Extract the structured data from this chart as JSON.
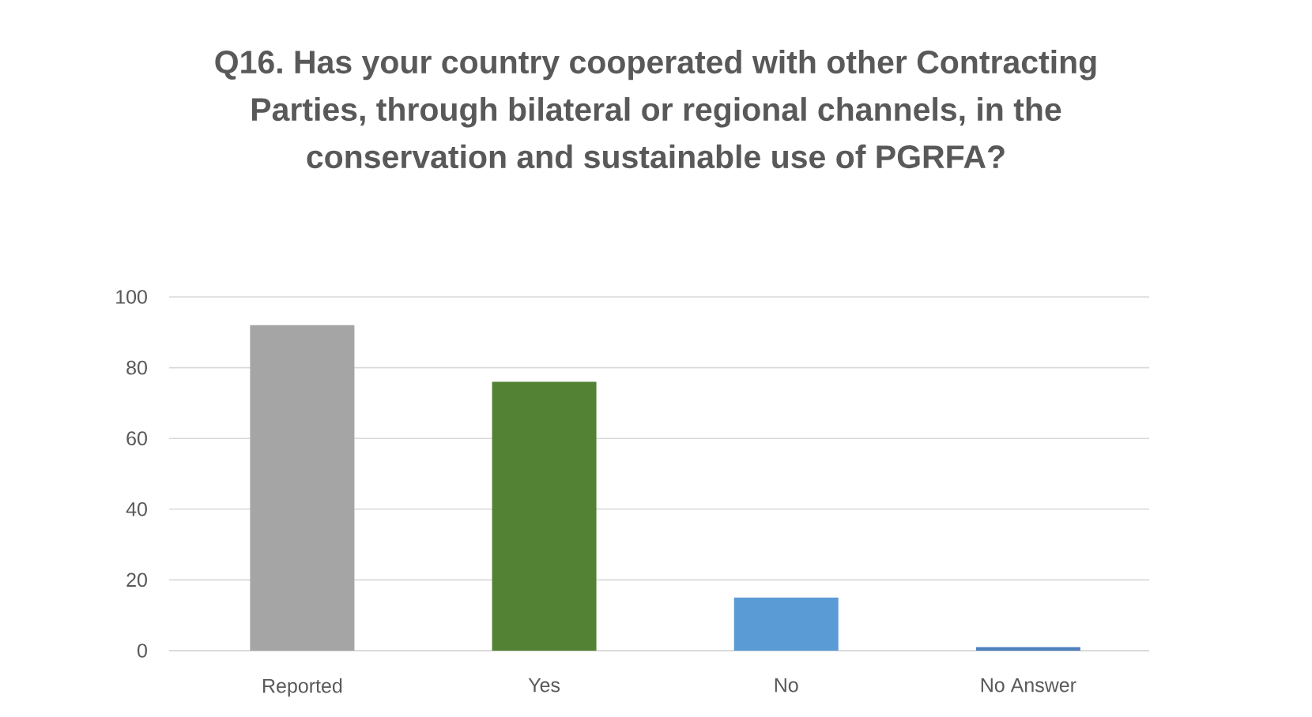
{
  "chart_data": {
    "type": "bar",
    "title": "Q16. Has your country cooperated with other Contracting Parties, through bilateral or regional channels, in the conservation and sustainable use of PGRFA?",
    "categories": [
      "Reported",
      "Yes",
      "No",
      "No Answer"
    ],
    "values": [
      92,
      76,
      15,
      1
    ],
    "colors": [
      "#a5a5a5",
      "#548235",
      "#5b9bd5",
      "#4f81bd"
    ],
    "ylim": [
      0,
      100
    ],
    "yticks": [
      0,
      20,
      40,
      60,
      80,
      100
    ],
    "grid": "y"
  }
}
